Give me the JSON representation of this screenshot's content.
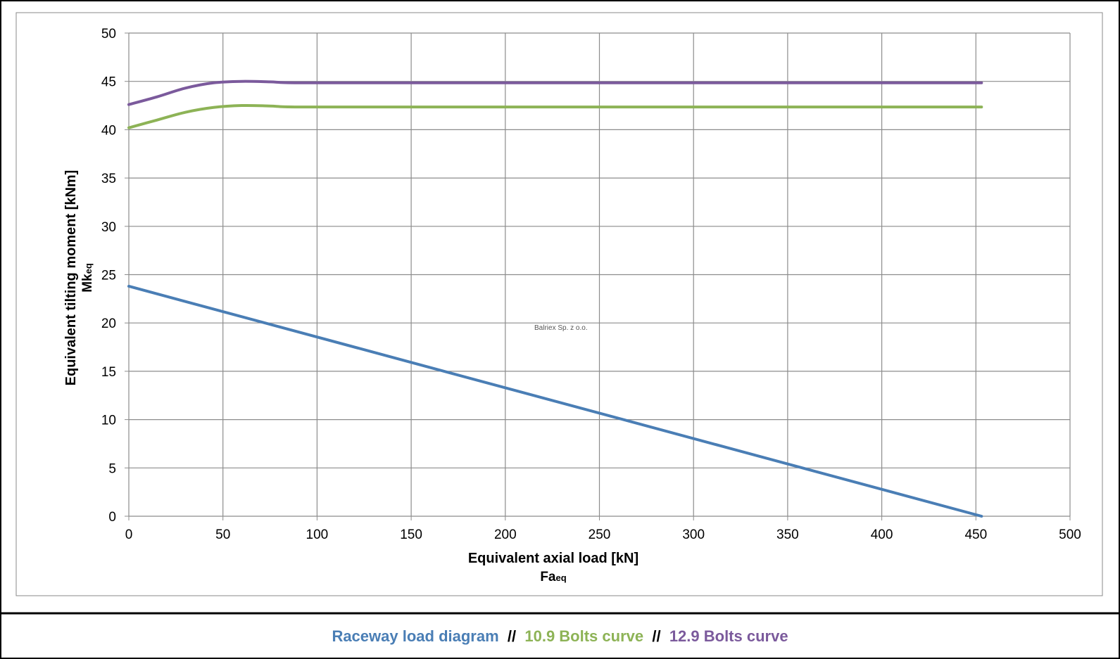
{
  "chart_data": {
    "type": "line",
    "xlabel": "Equivalent axial load [kN]",
    "xlabel_sub": {
      "main": "Fa",
      "subscript": "eq"
    },
    "ylabel": "Equivalent tilting moment [kNm]",
    "ylabel_sub": {
      "main": "Mk",
      "subscript": "eq"
    },
    "xlim": [
      0,
      500
    ],
    "ylim": [
      0,
      50
    ],
    "x_ticks": [
      0,
      50,
      100,
      150,
      200,
      250,
      300,
      350,
      400,
      450,
      500
    ],
    "y_ticks": [
      0,
      5,
      10,
      15,
      20,
      25,
      30,
      35,
      40,
      45,
      50
    ],
    "grid": true,
    "watermark": "Balriex Sp. z o.o.",
    "series": [
      {
        "name": "Raceway load diagram",
        "color": "#4a7eb5",
        "x": [
          0,
          453
        ],
        "y": [
          23.8,
          0
        ]
      },
      {
        "name": "10.9 Bolts curve",
        "color": "#8db356",
        "x": [
          0,
          15,
          30,
          45,
          60,
          75,
          90,
          150,
          250,
          350,
          453
        ],
        "y": [
          40.2,
          41.0,
          41.8,
          42.3,
          42.5,
          42.45,
          42.35,
          42.35,
          42.35,
          42.35,
          42.35
        ]
      },
      {
        "name": "12.9 Bolts curve",
        "color": "#7b5a9c",
        "x": [
          0,
          15,
          30,
          45,
          60,
          75,
          90,
          150,
          250,
          350,
          453
        ],
        "y": [
          42.6,
          43.4,
          44.3,
          44.85,
          45.0,
          44.95,
          44.85,
          44.85,
          44.85,
          44.85,
          44.85
        ]
      }
    ]
  },
  "legend": {
    "items": [
      {
        "label": "Raceway load diagram",
        "color": "#4a7eb5"
      },
      {
        "label": "10.9 Bolts curve",
        "color": "#8db356"
      },
      {
        "label": "12.9 Bolts curve",
        "color": "#7b5a9c"
      }
    ],
    "separator": "//"
  }
}
